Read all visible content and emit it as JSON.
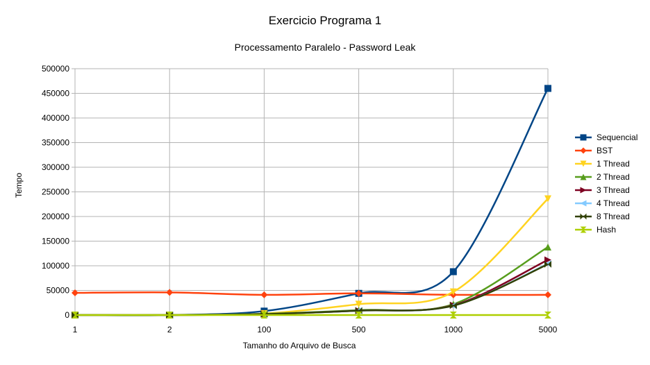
{
  "chart_data": {
    "type": "line",
    "title": "Exercicio Programa 1",
    "subtitle": "Processamento Paralelo - Password Leak",
    "xlabel": "Tamanho do Arquivo de Busca",
    "ylabel": "Tempo",
    "categories": [
      "1",
      "2",
      "100",
      "500",
      "1000",
      "5000"
    ],
    "yticks": [
      "0",
      "50000",
      "100000",
      "150000",
      "200000",
      "250000",
      "300000",
      "350000",
      "400000",
      "450000",
      "500000"
    ],
    "ylim": [
      0,
      500000
    ],
    "grid": true,
    "legend_position": "right",
    "series": [
      {
        "name": "Sequencial",
        "color": "#004586",
        "marker": "square",
        "values": [
          0,
          0,
          8000,
          44000,
          88000,
          460000
        ]
      },
      {
        "name": "BST",
        "color": "#ff420e",
        "marker": "diamond",
        "values": [
          45000,
          46000,
          41000,
          44000,
          41000,
          41000
        ]
      },
      {
        "name": "1 Thread",
        "color": "#ffd320",
        "marker": "triangle-down",
        "values": [
          0,
          0,
          3000,
          22000,
          47000,
          236000
        ]
      },
      {
        "name": "2 Thread",
        "color": "#579d1c",
        "marker": "triangle-up",
        "values": [
          0,
          0,
          2500,
          10000,
          22000,
          138000
        ]
      },
      {
        "name": "3 Thread",
        "color": "#7e0021",
        "marker": "triangle-right",
        "values": [
          0,
          0,
          2000,
          9000,
          20000,
          112000
        ]
      },
      {
        "name": "4 Thread",
        "color": "#83caff",
        "marker": "triangle-left",
        "values": [
          0,
          0,
          2000,
          9000,
          19000,
          104000
        ]
      },
      {
        "name": "8 Thread",
        "color": "#314004",
        "marker": "bowtie",
        "values": [
          0,
          0,
          2000,
          9000,
          19000,
          103000
        ]
      },
      {
        "name": "Hash",
        "color": "#aecf00",
        "marker": "hourglass",
        "values": [
          0,
          0,
          0,
          0,
          0,
          0
        ]
      }
    ]
  }
}
